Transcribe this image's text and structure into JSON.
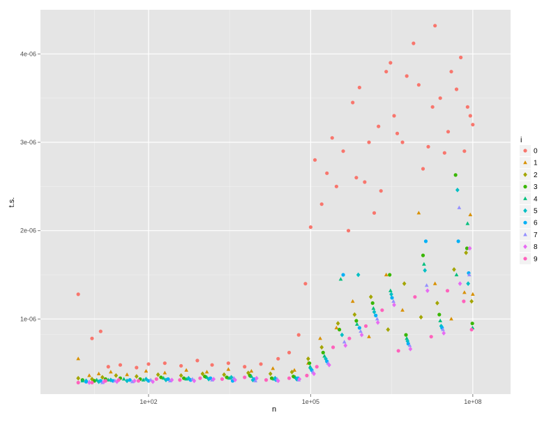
{
  "chart_data": {
    "type": "scatter",
    "title": "",
    "xlabel": "n",
    "ylabel": "t.s.",
    "x_scale": "log10",
    "xlim": [
      1,
      500000000
    ],
    "ylim": [
      1.5e-07,
      4.5e-06
    ],
    "x_ticks": [
      {
        "value": 100,
        "label": "1e+02"
      },
      {
        "value": 100000,
        "label": "1e+05"
      },
      {
        "value": 100000000,
        "label": "1e+08"
      }
    ],
    "y_ticks": [
      {
        "value": 1e-06,
        "label": "1e-06"
      },
      {
        "value": 2e-06,
        "label": "2e-06"
      },
      {
        "value": 3e-06,
        "label": "3e-06"
      },
      {
        "value": 4e-06,
        "label": "4e-06"
      }
    ],
    "grid": true,
    "legend": {
      "title": "i",
      "position": "right"
    },
    "series": [
      {
        "name": "0",
        "color": "#F8766D",
        "shape": "circle",
        "x": [
          5,
          9,
          13,
          18,
          30,
          60,
          100,
          200,
          400,
          800,
          1500,
          3000,
          6000,
          12000,
          25000,
          40000,
          60000,
          80000,
          100000,
          120000,
          160000,
          200000,
          250000,
          300000,
          400000,
          500000,
          600000,
          700000,
          800000,
          1000000,
          1200000,
          1500000,
          1800000,
          2000000,
          2500000,
          3000000,
          3500000,
          4000000,
          5000000,
          6000000,
          8000000,
          10000000,
          12000000,
          15000000,
          18000000,
          20000000,
          25000000,
          30000000,
          35000000,
          40000000,
          50000000,
          60000000,
          70000000,
          80000000,
          90000000,
          100000000
        ],
        "y": [
          1.28e-06,
          7.8e-07,
          8.6e-07,
          4.6e-07,
          4.8e-07,
          4.5e-07,
          4.9e-07,
          5e-07,
          4.7e-07,
          5.3e-07,
          4.8e-07,
          5e-07,
          4.6e-07,
          4.9e-07,
          5.5e-07,
          6.2e-07,
          8.2e-07,
          1.4e-06,
          2.04e-06,
          2.8e-06,
          2.3e-06,
          2.65e-06,
          3.05e-06,
          2.5e-06,
          2.9e-06,
          2e-06,
          3.45e-06,
          2.6e-06,
          3.62e-06,
          2.55e-06,
          3e-06,
          2.2e-06,
          3.18e-06,
          2.45e-06,
          3.8e-06,
          3.9e-06,
          3.3e-06,
          3.1e-06,
          3e-06,
          3.75e-06,
          4.12e-06,
          3.65e-06,
          2.7e-06,
          2.95e-06,
          3.4e-06,
          4.32e-06,
          3.5e-06,
          2.88e-06,
          3.12e-06,
          3.8e-06,
          3.6e-06,
          3.96e-06,
          2.9e-06,
          3.4e-06,
          3.3e-06,
          3.2e-06
        ]
      },
      {
        "name": "1",
        "color": "#D89000",
        "shape": "triangle",
        "x": [
          5,
          8,
          12,
          20,
          40,
          90,
          200,
          500,
          1200,
          3000,
          8000,
          20000,
          50000,
          90000,
          150000,
          300000,
          600000,
          1200000,
          2500000,
          5000000,
          10000000,
          20000000,
          40000000,
          70000000,
          90000000,
          100000000
        ],
        "y": [
          5.5e-07,
          3.6e-07,
          3.8e-07,
          4e-07,
          3.7e-07,
          4.1e-07,
          3.9e-07,
          4.2e-07,
          4e-07,
          4.3e-07,
          4.1e-07,
          4.4e-07,
          4.2e-07,
          5e-07,
          7.8e-07,
          9e-07,
          1.2e-06,
          8e-07,
          1.5e-06,
          1.1e-06,
          2.2e-06,
          1.4e-06,
          1e-06,
          1.3e-06,
          2.18e-06,
          1.28e-06
        ]
      },
      {
        "name": "2",
        "color": "#A3A500",
        "shape": "diamond",
        "x": [
          5,
          9,
          14,
          25,
          60,
          150,
          400,
          1000,
          2500,
          7000,
          18000,
          45000,
          90000,
          160000,
          320000,
          650000,
          1300000,
          2700000,
          5400000,
          11000000,
          22000000,
          45000000,
          75000000,
          95000000
        ],
        "y": [
          3.3e-07,
          3.2e-07,
          3.4e-07,
          3.6e-07,
          3.5e-07,
          3.7e-07,
          3.6e-07,
          3.8e-07,
          3.7e-07,
          3.9e-07,
          3.8e-07,
          4e-07,
          5.5e-07,
          6.8e-07,
          9.5e-07,
          1.05e-06,
          1.25e-06,
          8.8e-07,
          1.4e-06,
          1.02e-06,
          1.18e-06,
          1.56e-06,
          1.75e-06,
          1.2e-06
        ]
      },
      {
        "name": "3",
        "color": "#39B600",
        "shape": "circle",
        "x": [
          6,
          10,
          16,
          30,
          70,
          170,
          450,
          1100,
          2800,
          7500,
          19000,
          48000,
          95000,
          170000,
          340000,
          700000,
          1400000,
          2900000,
          5800000,
          12000000,
          24000000,
          48000000,
          78000000,
          98000000
        ],
        "y": [
          3.1e-07,
          3e-07,
          3.2e-07,
          3.3e-07,
          3.2e-07,
          3.4e-07,
          3.3e-07,
          3.5e-07,
          3.4e-07,
          3.6e-07,
          3.3e-07,
          3.5e-07,
          5e-07,
          6.2e-07,
          8.8e-07,
          9.8e-07,
          1.18e-06,
          1.5e-06,
          8.2e-07,
          1.72e-06,
          1.05e-06,
          2.63e-06,
          1.8e-06,
          9.5e-07
        ]
      },
      {
        "name": "4",
        "color": "#00BF7D",
        "shape": "triangle",
        "x": [
          6,
          11,
          18,
          35,
          80,
          190,
          500,
          1200,
          3100,
          8000,
          21000,
          52000,
          98000,
          180000,
          360000,
          720000,
          1450000,
          3000000,
          6000000,
          12500000,
          25000000,
          50000000,
          80000000,
          99000000
        ],
        "y": [
          3e-07,
          3.1e-07,
          3.1e-07,
          3.2e-07,
          3.1e-07,
          3.3e-07,
          3.2e-07,
          3.4e-07,
          3.3e-07,
          3.5e-07,
          3.2e-07,
          3.4e-07,
          4.6e-07,
          5.8e-07,
          1.45e-06,
          9.4e-07,
          1.12e-06,
          1.32e-06,
          7.8e-07,
          1.62e-06,
          9.8e-07,
          1.5e-06,
          2.08e-06,
          9e-07
        ]
      },
      {
        "name": "5",
        "color": "#00BFC4",
        "shape": "diamond",
        "x": [
          7,
          12,
          20,
          40,
          90,
          210,
          550,
          1300,
          3400,
          8500,
          22000,
          55000,
          100000,
          190000,
          380000,
          760000,
          1500000,
          3100000,
          6200000,
          13000000,
          26000000,
          52000000,
          82000000
        ],
        "y": [
          3e-07,
          2.9e-07,
          3.1e-07,
          3e-07,
          3.2e-07,
          3.1e-07,
          3.3e-07,
          3.2e-07,
          3.4e-07,
          3.1e-07,
          3.3e-07,
          3.2e-07,
          4.4e-07,
          5.5e-07,
          8.2e-07,
          1.5e-06,
          1.08e-06,
          1.28e-06,
          7.5e-07,
          1.55e-06,
          9.2e-07,
          2.46e-06,
          1.4e-06
        ]
      },
      {
        "name": "6",
        "color": "#00B0F6",
        "shape": "circle",
        "x": [
          7,
          13,
          22,
          45,
          100,
          230,
          600,
          1400,
          3600,
          9000,
          23000,
          58000,
          105000,
          200000,
          400000,
          800000,
          1600000,
          3200000,
          6400000,
          13500000,
          27000000,
          54000000,
          84000000
        ],
        "y": [
          2.9e-07,
          3e-07,
          3e-07,
          3.1e-07,
          3e-07,
          3.2e-07,
          3.1e-07,
          3.3e-07,
          3e-07,
          3.2e-07,
          3.1e-07,
          3.3e-07,
          4.2e-07,
          5.2e-07,
          1.5e-06,
          9e-07,
          1.04e-06,
          1.24e-06,
          7.2e-07,
          1.88e-06,
          9e-07,
          1.88e-06,
          1.52e-06
        ]
      },
      {
        "name": "7",
        "color": "#9590FF",
        "shape": "triangle",
        "x": [
          8,
          14,
          24,
          50,
          110,
          250,
          650,
          1500,
          3800,
          9500,
          24000,
          60000,
          110000,
          210000,
          420000,
          840000,
          1700000,
          3400000,
          6800000,
          14000000,
          28000000,
          56000000,
          86000000
        ],
        "y": [
          2.9e-07,
          2.8e-07,
          3e-07,
          2.9e-07,
          3.1e-07,
          3e-07,
          3.2e-07,
          3.1e-07,
          3.3e-07,
          3e-07,
          3.2e-07,
          3.1e-07,
          4e-07,
          5e-07,
          7.4e-07,
          8.6e-07,
          1e-06,
          1.2e-06,
          7e-07,
          1.38e-06,
          8.8e-07,
          2.26e-06,
          1.5e-06
        ]
      },
      {
        "name": "8",
        "color": "#E76BF3",
        "shape": "diamond",
        "x": [
          8,
          15,
          26,
          55,
          120,
          270,
          700,
          1600,
          4000,
          10000,
          25000,
          62000,
          115000,
          220000,
          440000,
          880000,
          1750000,
          3500000,
          7000000,
          14500000,
          29000000,
          58000000,
          88000000
        ],
        "y": [
          2.8e-07,
          2.9e-07,
          2.9e-07,
          3e-07,
          2.9e-07,
          3.1e-07,
          3e-07,
          3.2e-07,
          3.1e-07,
          3.3e-07,
          3e-07,
          3.2e-07,
          3.8e-07,
          4.8e-07,
          7e-07,
          8.2e-07,
          9.6e-07,
          1.16e-06,
          6.6e-07,
          1.32e-06,
          8.4e-07,
          1.4e-06,
          1.8e-06
        ]
      },
      {
        "name": "9",
        "color": "#FF62BC",
        "shape": "circle",
        "x": [
          5,
          9,
          16,
          28,
          65,
          140,
          380,
          900,
          2300,
          6000,
          15000,
          40000,
          85000,
          130000,
          260000,
          520000,
          1050000,
          2100000,
          4200000,
          8500000,
          17000000,
          34000000,
          68000000,
          95000000
        ],
        "y": [
          2.8e-07,
          2.8e-07,
          3e-07,
          3.1e-07,
          3e-07,
          3.2e-07,
          3.1e-07,
          3.3e-07,
          3.2e-07,
          3.4e-07,
          3.1e-07,
          3.3e-07,
          3.6e-07,
          4.6e-07,
          6.8e-07,
          7.8e-07,
          9.2e-07,
          1.1e-06,
          6.4e-07,
          1.25e-06,
          8e-07,
          1.32e-06,
          1.2e-06,
          8.8e-07
        ]
      }
    ]
  }
}
